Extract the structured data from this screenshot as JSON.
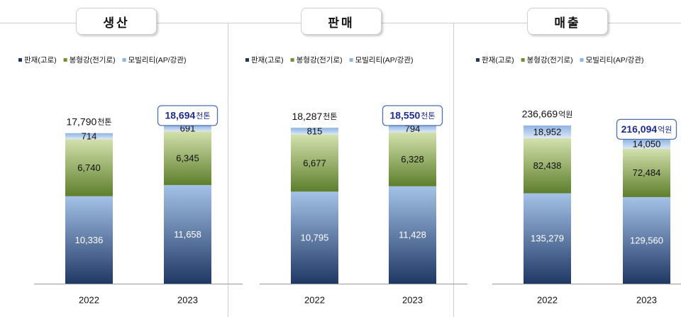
{
  "legend": {
    "items": [
      {
        "label": "판재(고로)",
        "color": "#1f3864"
      },
      {
        "label": "봉형강(전기로)",
        "color": "#6f8f35"
      },
      {
        "label": "모빌리티(AP/강관)",
        "color": "#8db3e2"
      }
    ]
  },
  "colors": {
    "sheet_dark": "#1f3864",
    "sheet_light": "#a4c2e8",
    "bar_dark": "#5e7f2c",
    "bar_light": "#d3e1ad",
    "mobility_dark": "#8db3e2",
    "mobility_light": "#dce8f6",
    "highlight_border": "#4f6fb0",
    "highlight_text": "#1f2d8a"
  },
  "chart_data": [
    {
      "type": "bar",
      "title": "생산",
      "categories": [
        "2022",
        "2023"
      ],
      "series": [
        {
          "name": "판재(고로)",
          "values": [
            10336,
            11658
          ]
        },
        {
          "name": "봉형강(전기로)",
          "values": [
            6740,
            6345
          ]
        },
        {
          "name": "모빌리티(AP/강관)",
          "values": [
            714,
            691
          ]
        }
      ],
      "value_labels": [
        [
          "10,336",
          "6,740",
          "714"
        ],
        [
          "11,658",
          "6,345",
          "691"
        ]
      ],
      "totals": [
        17790,
        18694
      ],
      "total_labels": [
        "17,790",
        "18,694"
      ],
      "unit": "천톤",
      "highlight": [
        false,
        true
      ]
    },
    {
      "type": "bar",
      "title": "판매",
      "categories": [
        "2022",
        "2023"
      ],
      "series": [
        {
          "name": "판재(고로)",
          "values": [
            10795,
            11428
          ]
        },
        {
          "name": "봉형강(전기로)",
          "values": [
            6677,
            6328
          ]
        },
        {
          "name": "모빌리티(AP/강관)",
          "values": [
            815,
            794
          ]
        }
      ],
      "value_labels": [
        [
          "10,795",
          "6,677",
          "815"
        ],
        [
          "11,428",
          "6,328",
          "794"
        ]
      ],
      "totals": [
        18287,
        18550
      ],
      "total_labels": [
        "18,287",
        "18,550"
      ],
      "unit": "천톤",
      "highlight": [
        false,
        true
      ]
    },
    {
      "type": "bar",
      "title": "매출",
      "categories": [
        "2022",
        "2023"
      ],
      "series": [
        {
          "name": "판재(고로)",
          "values": [
            135279,
            129560
          ]
        },
        {
          "name": "봉형강(전기로)",
          "values": [
            82438,
            72484
          ]
        },
        {
          "name": "모빌리티(AP/강관)",
          "values": [
            18952,
            14050
          ]
        }
      ],
      "value_labels": [
        [
          "135,279",
          "82,438",
          "18,952"
        ],
        [
          "129,560",
          "72,484",
          "14,050"
        ]
      ],
      "totals": [
        236669,
        216094
      ],
      "total_labels": [
        "236,669",
        "216,094"
      ],
      "unit": "억원",
      "highlight": [
        false,
        true
      ]
    }
  ]
}
